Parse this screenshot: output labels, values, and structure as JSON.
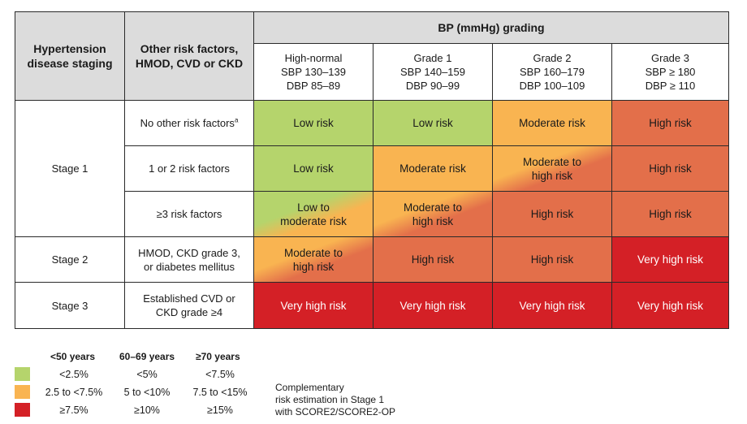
{
  "colors": {
    "low": "#b5d46c",
    "moderate": "#f9b451",
    "high": "#e36f4a",
    "very_high": "#d42026",
    "header_bg": "#dcdcdc"
  },
  "header": {
    "col1": "Hypertension disease staging",
    "col2": "Other risk factors, HMOD, CVD or CKD",
    "bp_title": "BP (mmHg) grading",
    "grades": [
      {
        "name": "High-normal",
        "sbp": "SBP 130–139",
        "dbp": "DBP 85–89"
      },
      {
        "name": "Grade 1",
        "sbp": "SBP 140–159",
        "dbp": "DBP 90–99"
      },
      {
        "name": "Grade 2",
        "sbp": "SBP 160–179",
        "dbp": "DBP 100–109"
      },
      {
        "name": "Grade 3",
        "sbp": "SBP ≥ 180",
        "dbp": "DBP ≥ 110"
      }
    ]
  },
  "stages": [
    "Stage 1",
    "Stage 2",
    "Stage 3"
  ],
  "rows": [
    {
      "factor": "No other risk factors",
      "factor_sup": "a",
      "cells": [
        "Low risk",
        "Low risk",
        "Moderate risk",
        "High risk"
      ]
    },
    {
      "factor": "1 or 2 risk factors",
      "cells": [
        "Low risk",
        "Moderate risk",
        "Moderate to high risk",
        "High risk"
      ]
    },
    {
      "factor": "≥3 risk factors",
      "cells": [
        "Low to moderate risk",
        "Moderate to high risk",
        "High risk",
        "High risk"
      ]
    },
    {
      "factor": "HMOD, CKD grade 3, or diabetes mellitus",
      "cells": [
        "Moderate to high risk",
        "High risk",
        "High risk",
        "Very high risk"
      ]
    },
    {
      "factor": "Established CVD or CKD grade ≥4",
      "cells": [
        "Very high risk",
        "Very high risk",
        "Very high risk",
        "Very high risk"
      ]
    }
  ],
  "legend": {
    "age_groups": [
      "<50 years",
      "60–69 years",
      "≥70 years"
    ],
    "rows": [
      {
        "color": "low",
        "values": [
          "<2.5%",
          "<5%",
          "<7.5%"
        ]
      },
      {
        "color": "moderate",
        "values": [
          "2.5 to <7.5%",
          "5 to <10%",
          "7.5 to <15%"
        ]
      },
      {
        "color": "very_high",
        "values": [
          "≥7.5%",
          "≥10%",
          "≥15%"
        ]
      }
    ],
    "note_lines": [
      "Complementary",
      "risk estimation in Stage 1",
      "with SCORE2/SCORE2-OP"
    ]
  }
}
